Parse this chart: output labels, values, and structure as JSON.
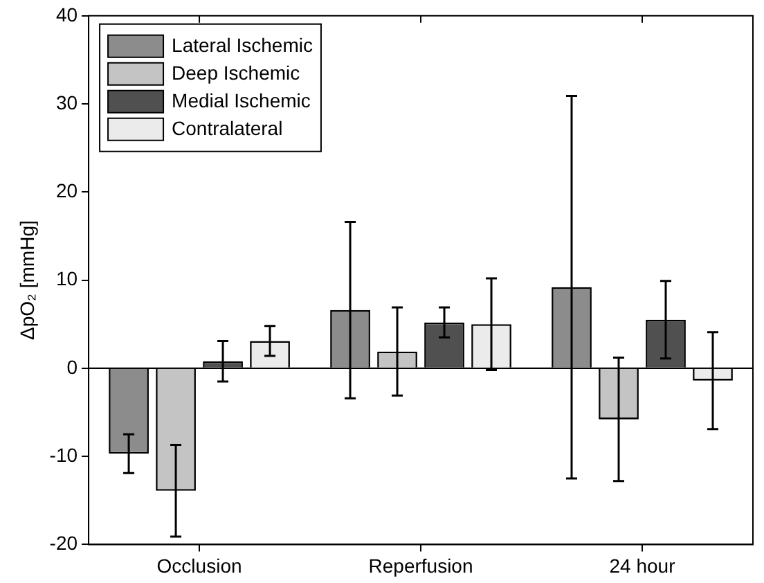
{
  "chart_data": {
    "type": "bar",
    "ylabel": "ΔpO₂ [mmHg]",
    "categories": [
      "Occlusion",
      "Reperfusion",
      "24 hour"
    ],
    "series": [
      {
        "name": "Lateral Ischemic",
        "color": "#8c8c8c",
        "values": [
          -9.7,
          6.6,
          9.2
        ],
        "errors": [
          2.2,
          10,
          21.7
        ]
      },
      {
        "name": "Deep Ischemic",
        "color": "#c4c4c4",
        "values": [
          -13.9,
          1.9,
          -5.8
        ],
        "errors": [
          5.2,
          5,
          7
        ]
      },
      {
        "name": "Medial Ischemic",
        "color": "#505050",
        "values": [
          0.8,
          5.2,
          5.5
        ],
        "errors": [
          2.3,
          1.7,
          4.4
        ]
      },
      {
        "name": "Contralateral",
        "color": "#ebebeb",
        "values": [
          3.1,
          5.0,
          -1.4
        ],
        "errors": [
          1.7,
          5.2,
          5.5
        ]
      }
    ],
    "ylim": [
      -20,
      40
    ],
    "yticks": [
      -20,
      -10,
      0,
      10,
      20,
      30,
      40
    ],
    "grid": false,
    "legend": "top left",
    "ref_lines": [
      {
        "axis": "y",
        "value": 0,
        "color": "#000000"
      }
    ]
  }
}
